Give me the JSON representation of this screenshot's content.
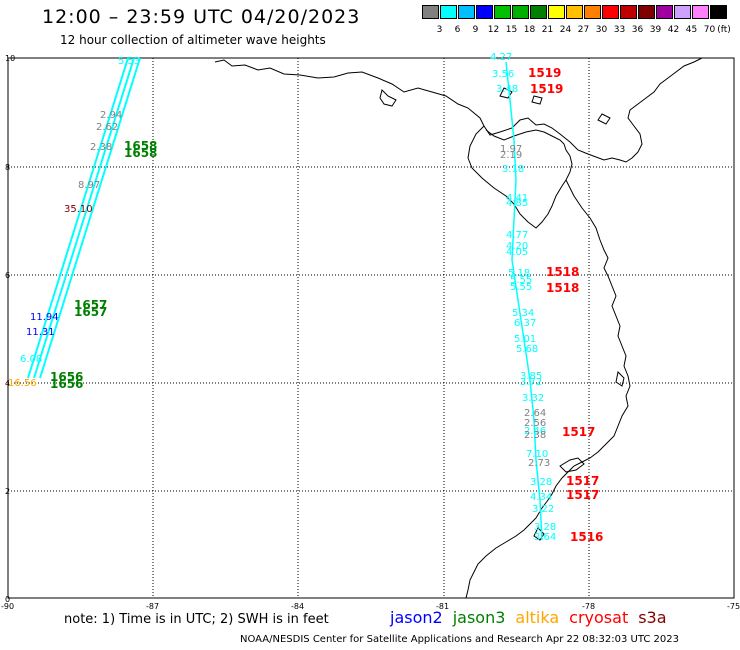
{
  "title": "12:00 – 23:59 UTC 04/20/2023",
  "subtitle": "12 hour collection of altimeter wave heights",
  "colorbar": {
    "unit_label": "(ft)",
    "entries": [
      {
        "label": "3",
        "color": "#808080"
      },
      {
        "label": "6",
        "color": "#00ffff"
      },
      {
        "label": "9",
        "color": "#00bfff"
      },
      {
        "label": "12",
        "color": "#0000ff"
      },
      {
        "label": "15",
        "color": "#00c000"
      },
      {
        "label": "18",
        "color": "#00b000"
      },
      {
        "label": "21",
        "color": "#008000"
      },
      {
        "label": "24",
        "color": "#ffff00"
      },
      {
        "label": "27",
        "color": "#ffc000"
      },
      {
        "label": "30",
        "color": "#ff8000"
      },
      {
        "label": "33",
        "color": "#ff0000"
      },
      {
        "label": "36",
        "color": "#c00000"
      },
      {
        "label": "39",
        "color": "#800000"
      },
      {
        "label": "42",
        "color": "#a000a0"
      },
      {
        "label": "45",
        "color": "#d0a0ff"
      },
      {
        "label": "70",
        "color": "#ff80ff"
      },
      {
        "label": "",
        "color": "#000000"
      }
    ]
  },
  "axes": {
    "x_ticks": [
      "-90",
      "-87",
      "-84",
      "-81",
      "-78",
      "-75"
    ],
    "y_ticks": [
      "0",
      "2",
      "4",
      "6",
      "8",
      "10"
    ]
  },
  "note": "note: 1) Time is in UTC; 2) SWH is in feet",
  "satellites": [
    {
      "name": "jason2",
      "color": "#0000ff"
    },
    {
      "name": "jason3",
      "color": "#008000"
    },
    {
      "name": "altika",
      "color": "#ffa500"
    },
    {
      "name": "cryosat",
      "color": "#ff0000"
    },
    {
      "name": "s3a",
      "color": "#800000"
    }
  ],
  "footer": "NOAA/NESDIS Center for Satellite Applications and Research    Apr 22 08:32:03 UTC 2023",
  "left_track": {
    "readings": [
      {
        "text": "5.53",
        "color": "#00ffff"
      },
      {
        "text": "2.94",
        "color": "#808080"
      },
      {
        "text": "2.62",
        "color": "#808080"
      },
      {
        "text": "2.38",
        "color": "#808080"
      },
      {
        "text": "8.97",
        "color": "#808080"
      },
      {
        "text": "35.10",
        "color": "#800000"
      },
      {
        "text": "11.94",
        "color": "#0000ff"
      },
      {
        "text": "11.31",
        "color": "#0000ff"
      },
      {
        "text": "6.08",
        "color": "#00ffff"
      },
      {
        "text": "16.56",
        "color": "#ffa500"
      }
    ],
    "times": [
      {
        "text": "1658",
        "color": "#008000"
      },
      {
        "text": "1658",
        "color": "#008000"
      },
      {
        "text": "1657",
        "color": "#008000"
      },
      {
        "text": "1657",
        "color": "#008000"
      },
      {
        "text": "1656",
        "color": "#008000"
      },
      {
        "text": "1656",
        "color": "#008000"
      }
    ]
  },
  "right_track": {
    "readings": [
      {
        "text": "4.27",
        "color": "#00ffff"
      },
      {
        "text": "3.56",
        "color": "#00ffff"
      },
      {
        "text": "3.48",
        "color": "#00ffff"
      },
      {
        "text": "1.97",
        "color": "#808080"
      },
      {
        "text": "2.19",
        "color": "#808080"
      },
      {
        "text": "3.18",
        "color": "#00ffff"
      },
      {
        "text": "4.41",
        "color": "#00ffff"
      },
      {
        "text": "4.85",
        "color": "#00ffff"
      },
      {
        "text": "4.77",
        "color": "#00ffff"
      },
      {
        "text": "4.20",
        "color": "#00ffff"
      },
      {
        "text": "4.05",
        "color": "#00ffff"
      },
      {
        "text": "5.18",
        "color": "#00ffff"
      },
      {
        "text": "5.55",
        "color": "#00ffff"
      },
      {
        "text": "5.55",
        "color": "#00ffff"
      },
      {
        "text": "5.34",
        "color": "#00ffff"
      },
      {
        "text": "6.37",
        "color": "#00ffff"
      },
      {
        "text": "5.01",
        "color": "#00ffff"
      },
      {
        "text": "5.68",
        "color": "#00ffff"
      },
      {
        "text": "3.85",
        "color": "#00ffff"
      },
      {
        "text": "3.72",
        "color": "#00ffff"
      },
      {
        "text": "3.32",
        "color": "#00ffff"
      },
      {
        "text": "2.64",
        "color": "#808080"
      },
      {
        "text": "2.56",
        "color": "#808080"
      },
      {
        "text": "2.46",
        "color": "#00ffff"
      },
      {
        "text": "2.38",
        "color": "#808080"
      },
      {
        "text": "7.10",
        "color": "#00ffff"
      },
      {
        "text": "2.73",
        "color": "#808080"
      },
      {
        "text": "3.28",
        "color": "#00ffff"
      },
      {
        "text": "4.34",
        "color": "#00ffff"
      },
      {
        "text": "3.22",
        "color": "#00ffff"
      },
      {
        "text": "3.28",
        "color": "#00ffff"
      },
      {
        "text": "3.64",
        "color": "#00ffff"
      }
    ],
    "times": [
      {
        "text": "1519",
        "color": "#ff0000"
      },
      {
        "text": "1519",
        "color": "#ff0000"
      },
      {
        "text": "1518",
        "color": "#ff0000"
      },
      {
        "text": "1518",
        "color": "#ff0000"
      },
      {
        "text": "1517",
        "color": "#ff0000"
      },
      {
        "text": "1517",
        "color": "#ff0000"
      },
      {
        "text": "1517",
        "color": "#ff0000"
      },
      {
        "text": "1516",
        "color": "#ff0000"
      }
    ]
  }
}
